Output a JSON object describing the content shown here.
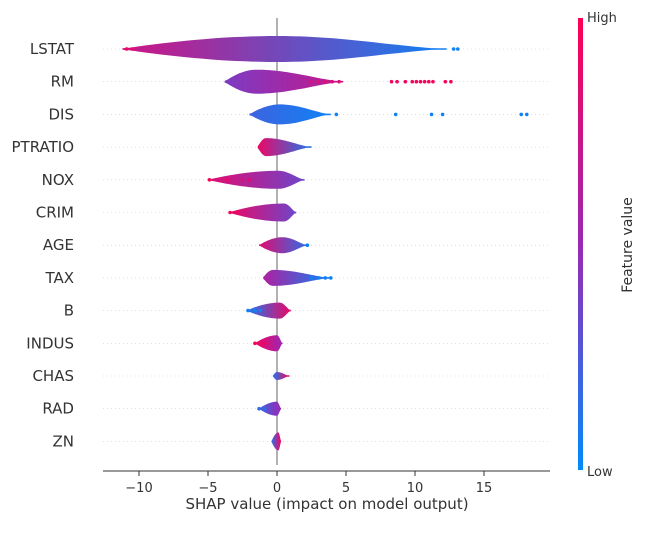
{
  "chart_data": {
    "type": "violin",
    "title": "",
    "xlabel": "SHAP value (impact on model output)",
    "xlim": [
      -12.5,
      19.5
    ],
    "x_ticks": [
      -10,
      -5,
      0,
      5,
      10,
      15
    ],
    "x_tick_labels": [
      "−10",
      "−5",
      "0",
      "5",
      "10",
      "15"
    ],
    "colorbar": {
      "label": "Feature value",
      "high_label": "High",
      "low_label": "Low",
      "low_color": "#008bfb",
      "mid_color": "#9b28b5",
      "high_color": "#ff0052"
    },
    "features": [
      {
        "name": "LSTAT",
        "min": -11.2,
        "max": 12.3,
        "peak": 0,
        "hw": 13,
        "color_low": 0.75,
        "color_high": 0.05,
        "outliers": [
          [
            12.8,
            0.05
          ],
          [
            13.1,
            0.05
          ],
          [
            -10.9,
            0.95
          ],
          [
            -10.5,
            0.9
          ]
        ]
      },
      {
        "name": "RM",
        "min": -3.8,
        "max": 4.8,
        "peak": -1.5,
        "hw": 12,
        "color_low": 0.4,
        "color_high": 0.7,
        "outliers": [
          [
            2.5,
            0.75
          ],
          [
            3.0,
            0.8
          ],
          [
            3.5,
            0.8
          ],
          [
            4.0,
            0.85
          ],
          [
            4.5,
            0.85
          ],
          [
            8.3,
            0.95
          ],
          [
            8.7,
            0.95
          ],
          [
            9.3,
            0.95
          ],
          [
            9.8,
            0.95
          ],
          [
            10.1,
            0.95
          ],
          [
            10.4,
            0.95
          ],
          [
            10.7,
            0.95
          ],
          [
            11.0,
            0.95
          ],
          [
            11.3,
            0.95
          ],
          [
            12.2,
            0.95
          ],
          [
            12.6,
            0.95
          ]
        ]
      },
      {
        "name": "DIS",
        "min": -2.0,
        "max": 3.9,
        "peak": 0.2,
        "hw": 10,
        "color_low": 0.2,
        "color_high": 0.05,
        "outliers": [
          [
            4.3,
            0.05
          ],
          [
            8.6,
            0.05
          ],
          [
            11.2,
            0.05
          ],
          [
            12.0,
            0.05
          ],
          [
            17.7,
            0.05
          ],
          [
            18.1,
            0.05
          ]
        ]
      },
      {
        "name": "PTRATIO",
        "min": -1.4,
        "max": 2.5,
        "peak": -0.8,
        "hw": 9,
        "color_low": 0.9,
        "color_high": 0.1,
        "outliers": []
      },
      {
        "name": "NOX",
        "min": -5.0,
        "max": 2.0,
        "peak": 0.1,
        "hw": 9,
        "color_low": 0.85,
        "color_high": 0.35,
        "outliers": [
          [
            -4.9,
            0.95
          ],
          [
            -3.6,
            0.9
          ],
          [
            -2.5,
            0.8
          ],
          [
            -2.0,
            0.8
          ]
        ]
      },
      {
        "name": "CRIM",
        "min": -3.5,
        "max": 1.4,
        "peak": 0.5,
        "hw": 9,
        "color_low": 0.9,
        "color_high": 0.35,
        "outliers": [
          [
            -3.4,
            0.95
          ],
          [
            -2.9,
            0.95
          ]
        ]
      },
      {
        "name": "AGE",
        "min": -1.3,
        "max": 2.2,
        "peak": 0.4,
        "hw": 8,
        "color_low": 0.85,
        "color_high": 0.15,
        "outliers": [
          [
            2.2,
            0.05
          ]
        ]
      },
      {
        "name": "TAX",
        "min": -1.0,
        "max": 3.9,
        "peak": -0.3,
        "hw": 8,
        "color_low": 0.6,
        "color_high": 0.05,
        "outliers": [
          [
            2.5,
            0.05
          ],
          [
            3.0,
            0.05
          ],
          [
            3.5,
            0.05
          ],
          [
            3.9,
            0.05
          ]
        ]
      },
      {
        "name": "B",
        "min": -2.2,
        "max": 1.0,
        "peak": 0.2,
        "hw": 8,
        "color_low": 0.1,
        "color_high": 0.9,
        "outliers": [
          [
            -2.1,
            0.05
          ],
          [
            -1.6,
            0.05
          ],
          [
            -1.2,
            0.05
          ]
        ]
      },
      {
        "name": "INDUS",
        "min": -1.6,
        "max": 0.4,
        "peak": 0.0,
        "hw": 8,
        "color_low": 0.95,
        "color_high": 0.5,
        "outliers": [
          [
            -1.6,
            0.95
          ],
          [
            -1.2,
            0.9
          ],
          [
            -0.8,
            0.9
          ]
        ]
      },
      {
        "name": "CHAS",
        "min": -0.3,
        "max": 0.9,
        "peak": 0.0,
        "hw": 4,
        "color_low": 0.1,
        "color_high": 0.95,
        "outliers": []
      },
      {
        "name": "RAD",
        "min": -1.3,
        "max": 0.3,
        "peak": 0.0,
        "hw": 7,
        "color_low": 0.2,
        "color_high": 0.5,
        "outliers": [
          [
            -1.3,
            0.15
          ],
          [
            -0.9,
            0.15
          ]
        ]
      },
      {
        "name": "ZN",
        "min": -0.4,
        "max": 0.3,
        "peak": 0.1,
        "hw": 9,
        "color_low": 0.15,
        "color_high": 0.95,
        "outliers": []
      }
    ]
  }
}
